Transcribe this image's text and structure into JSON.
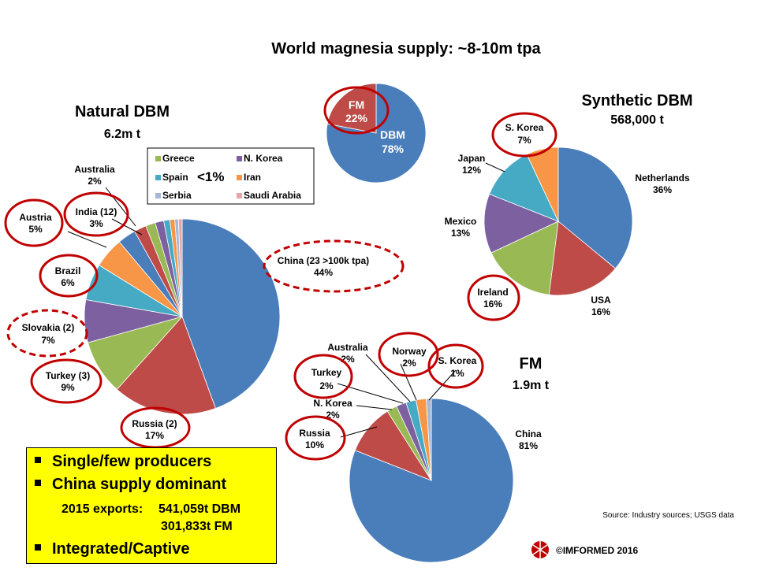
{
  "page": {
    "title": "World magnesia supply: ~8-10m tpa",
    "source": "Source: Industry sources; USGS data",
    "copyright": "©IMFORMED 2016"
  },
  "colors": {
    "blue": "#4a7ebb",
    "red": "#be4b48",
    "green": "#98b954",
    "purple": "#7d60a0",
    "teal": "#46aac5",
    "orange": "#f79646",
    "ring": "#c00000",
    "highlight": "#ffff00"
  },
  "legend": {
    "items": [
      {
        "label": "Greece",
        "color": "#98b954"
      },
      {
        "label": "N. Korea",
        "color": "#7d60a0"
      },
      {
        "label": "Spain",
        "color": "#46aac5"
      },
      {
        "label": "Iran",
        "color": "#f79646"
      },
      {
        "label": "Serbia",
        "color": "#a5b8d8"
      },
      {
        "label": "Saudi Arabia",
        "color": "#e6a6a6"
      }
    ],
    "note": "<1%"
  },
  "chart_data": [
    {
      "type": "pie",
      "title": "Natural DBM",
      "subtitle": "6.2m t",
      "slices": [
        {
          "label": "China (23 >100k tpa)",
          "value": 44,
          "display": "44%",
          "color": "#4a7ebb"
        },
        {
          "label": "Russia (2)",
          "value": 17,
          "display": "17%",
          "color": "#be4b48"
        },
        {
          "label": "Turkey (3)",
          "value": 9,
          "display": "9%",
          "color": "#98b954"
        },
        {
          "label": "Slovakia (2)",
          "value": 7,
          "display": "7%",
          "color": "#7d60a0"
        },
        {
          "label": "Brazil",
          "value": 6,
          "display": "6%",
          "color": "#46aac5"
        },
        {
          "label": "Austria",
          "value": 5,
          "display": "5%",
          "color": "#f79646"
        },
        {
          "label": "India (12)",
          "value": 3,
          "display": "3%",
          "color": "#4a7ebb"
        },
        {
          "label": "Australia",
          "value": 2,
          "display": "2%",
          "color": "#be4b48"
        },
        {
          "label": "Greece",
          "value": 1.6,
          "color": "#98b954"
        },
        {
          "label": "N. Korea",
          "value": 1.4,
          "color": "#7d60a0"
        },
        {
          "label": "Spain",
          "value": 1.0,
          "color": "#46aac5"
        },
        {
          "label": "Iran",
          "value": 0.8,
          "color": "#f79646"
        },
        {
          "label": "Serbia",
          "value": 0.6,
          "color": "#a5b8d8"
        },
        {
          "label": "Saudi Arabia",
          "value": 0.6,
          "color": "#e6a6a6"
        }
      ]
    },
    {
      "type": "pie",
      "title": "",
      "slices": [
        {
          "label": "DBM",
          "value": 78,
          "display": "78%",
          "color": "#4a7ebb"
        },
        {
          "label": "FM",
          "value": 22,
          "display": "22%",
          "color": "#be4b48"
        }
      ]
    },
    {
      "type": "pie",
      "title": "Synthetic DBM",
      "subtitle": "568,000 t",
      "slices": [
        {
          "label": "Netherlands",
          "value": 36,
          "display": "36%",
          "color": "#4a7ebb"
        },
        {
          "label": "USA",
          "value": 16,
          "display": "16%",
          "color": "#be4b48"
        },
        {
          "label": "Ireland",
          "value": 16,
          "display": "16%",
          "color": "#98b954"
        },
        {
          "label": "Mexico",
          "value": 13,
          "display": "13%",
          "color": "#7d60a0"
        },
        {
          "label": "Japan",
          "value": 12,
          "display": "12%",
          "color": "#46aac5"
        },
        {
          "label": "S. Korea",
          "value": 7,
          "display": "7%",
          "color": "#f79646"
        }
      ]
    },
    {
      "type": "pie",
      "title": "FM",
      "subtitle": "1.9m t",
      "slices": [
        {
          "label": "China",
          "value": 81,
          "display": "81%",
          "color": "#4a7ebb"
        },
        {
          "label": "Russia",
          "value": 10,
          "display": "10%",
          "color": "#be4b48"
        },
        {
          "label": "N. Korea",
          "value": 2,
          "display": "2%",
          "color": "#98b954"
        },
        {
          "label": "Turkey",
          "value": 2,
          "display": "2%",
          "color": "#7d60a0"
        },
        {
          "label": "Australia",
          "value": 2,
          "display": "2%",
          "color": "#46aac5"
        },
        {
          "label": "Norway",
          "value": 2,
          "display": "2%",
          "color": "#f79646"
        },
        {
          "label": "S. Korea",
          "value": 1,
          "display": "1%",
          "color": "#a5b8d8"
        }
      ]
    }
  ],
  "notes": {
    "bullets": [
      "Single/few producers",
      "China supply dominant",
      "Integrated/Captive"
    ],
    "exports_label": "2015 exports:",
    "exports_dbm": "541,059t DBM",
    "exports_fm": "301,833t FM"
  }
}
